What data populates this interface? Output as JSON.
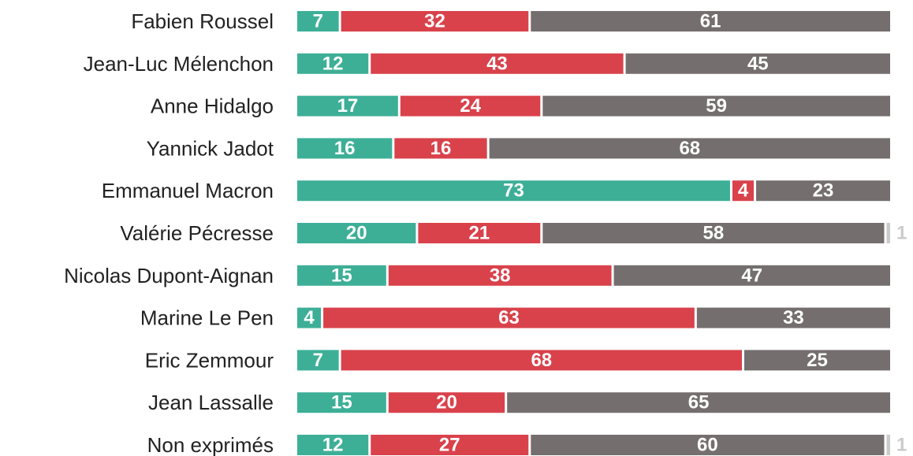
{
  "chart_data": {
    "type": "stacked-bar-horizontal",
    "categories": [
      "Fabien Roussel",
      "Jean-Luc Mélenchon",
      "Anne Hidalgo",
      "Yannick Jadot",
      "Emmanuel Macron",
      "Valérie Pécresse",
      "Nicolas Dupont-Aignan",
      "Marine Le Pen",
      "Eric Zemmour",
      "Jean Lassalle",
      "Non exprimés"
    ],
    "series": [
      {
        "color": "#3daf97",
        "values": [
          7,
          12,
          17,
          16,
          73,
          20,
          15,
          4,
          7,
          15,
          12
        ]
      },
      {
        "color": "#d9424b",
        "values": [
          32,
          43,
          24,
          16,
          4,
          21,
          38,
          63,
          68,
          20,
          27
        ]
      },
      {
        "color": "#746f6e",
        "values": [
          61,
          45,
          59,
          68,
          23,
          58,
          47,
          33,
          25,
          65,
          60
        ]
      },
      {
        "color": "#cbcbcb",
        "values": [
          null,
          null,
          null,
          null,
          null,
          1,
          null,
          null,
          null,
          null,
          1
        ]
      }
    ]
  }
}
